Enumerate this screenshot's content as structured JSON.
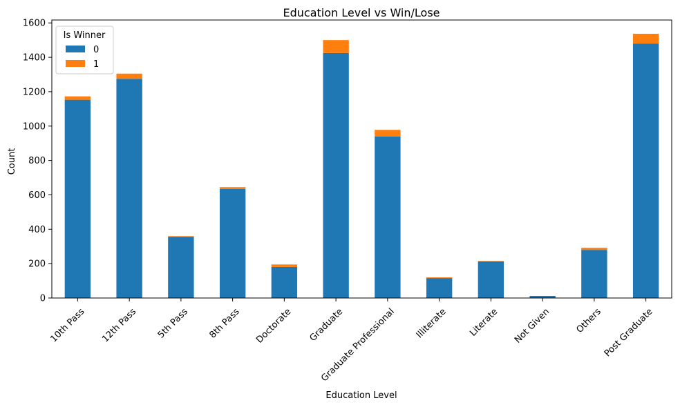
{
  "chart_data": {
    "type": "bar",
    "stacked": true,
    "title": "Education Level vs Win/Lose",
    "xlabel": "Education Level",
    "ylabel": "Count",
    "ylim": [
      0,
      1600
    ],
    "yticks": [
      0,
      200,
      400,
      600,
      800,
      1000,
      1200,
      1400,
      1600
    ],
    "grid": false,
    "legend": {
      "title": "Is Winner",
      "placement": "top-left"
    },
    "categories": [
      "10th Pass",
      "12th Pass",
      "5th Pass",
      "8th Pass",
      "Doctorate",
      "Graduate",
      "Graduate Professional",
      "Illiterate",
      "Literate",
      "Not Given",
      "Others",
      "Post Graduate"
    ],
    "series": [
      {
        "name": "0",
        "color": "#1f77b4",
        "values": [
          1153,
          1275,
          355,
          635,
          181,
          1425,
          940,
          116,
          213,
          12,
          280,
          1480
        ]
      },
      {
        "name": "1",
        "color": "#ff7f0e",
        "values": [
          20,
          30,
          5,
          10,
          14,
          75,
          38,
          4,
          2,
          0,
          12,
          57
        ]
      }
    ]
  }
}
